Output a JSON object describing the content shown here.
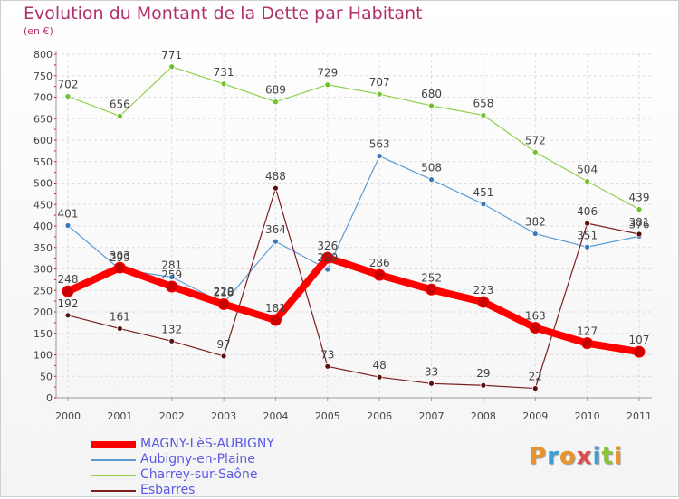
{
  "title": "Evolution du Montant de la Dette par Habitant",
  "subtitle": "(en €)",
  "logo": {
    "text": "Proxiti",
    "colors": [
      "#e8942a",
      "#3aa0d8",
      "#e8942a",
      "#e04a4a",
      "#3aa0d8",
      "#8ac23a",
      "#e8942a"
    ]
  },
  "chart_data": {
    "type": "line",
    "x": [
      "2000",
      "2001",
      "2002",
      "2003",
      "2004",
      "2005",
      "2006",
      "2007",
      "2008",
      "2009",
      "2010",
      "2011"
    ],
    "ylim": [
      0,
      800
    ],
    "yticks": [
      0,
      50,
      100,
      150,
      200,
      250,
      300,
      350,
      400,
      450,
      500,
      550,
      600,
      650,
      700,
      750,
      800
    ],
    "grid": true,
    "legend_position": "bottom-left",
    "series": [
      {
        "name": "MAGNY-LèS-AUBIGNY",
        "color": "#ff0000",
        "values": [
          248,
          303,
          259,
          218,
          181,
          326,
          286,
          252,
          223,
          163,
          127,
          107
        ],
        "labels": [
          "248",
          "303",
          "259",
          "218",
          "181",
          "326",
          "286",
          "252",
          "223",
          "163",
          "127",
          "107"
        ]
      },
      {
        "name": "Aubigny-en-Plaine",
        "color": "#5b9bd5",
        "values": [
          401,
          299,
          281,
          220,
          364,
          299,
          563,
          508,
          451,
          382,
          351,
          376
        ],
        "labels": [
          "401",
          "299",
          "281",
          "220",
          "364",
          "299",
          "563",
          "508",
          "451",
          "382",
          "351",
          "376"
        ]
      },
      {
        "name": "Charrey-sur-Saône",
        "color": "#8fd14f",
        "values": [
          702,
          656,
          771,
          731,
          689,
          729,
          707,
          680,
          658,
          572,
          504,
          439
        ],
        "labels": [
          "702",
          "656",
          "771",
          "731",
          "689",
          "729",
          "707",
          "680",
          "658",
          "572",
          "504",
          "439"
        ]
      },
      {
        "name": "Esbarres",
        "color": "#7a1f1f",
        "values": [
          192,
          161,
          132,
          97,
          488,
          73,
          48,
          33,
          29,
          22,
          406,
          381
        ],
        "labels": [
          "192",
          "161",
          "132",
          "97",
          "488",
          "73",
          "48",
          "33",
          "29",
          "22",
          "406",
          "381"
        ]
      }
    ]
  }
}
